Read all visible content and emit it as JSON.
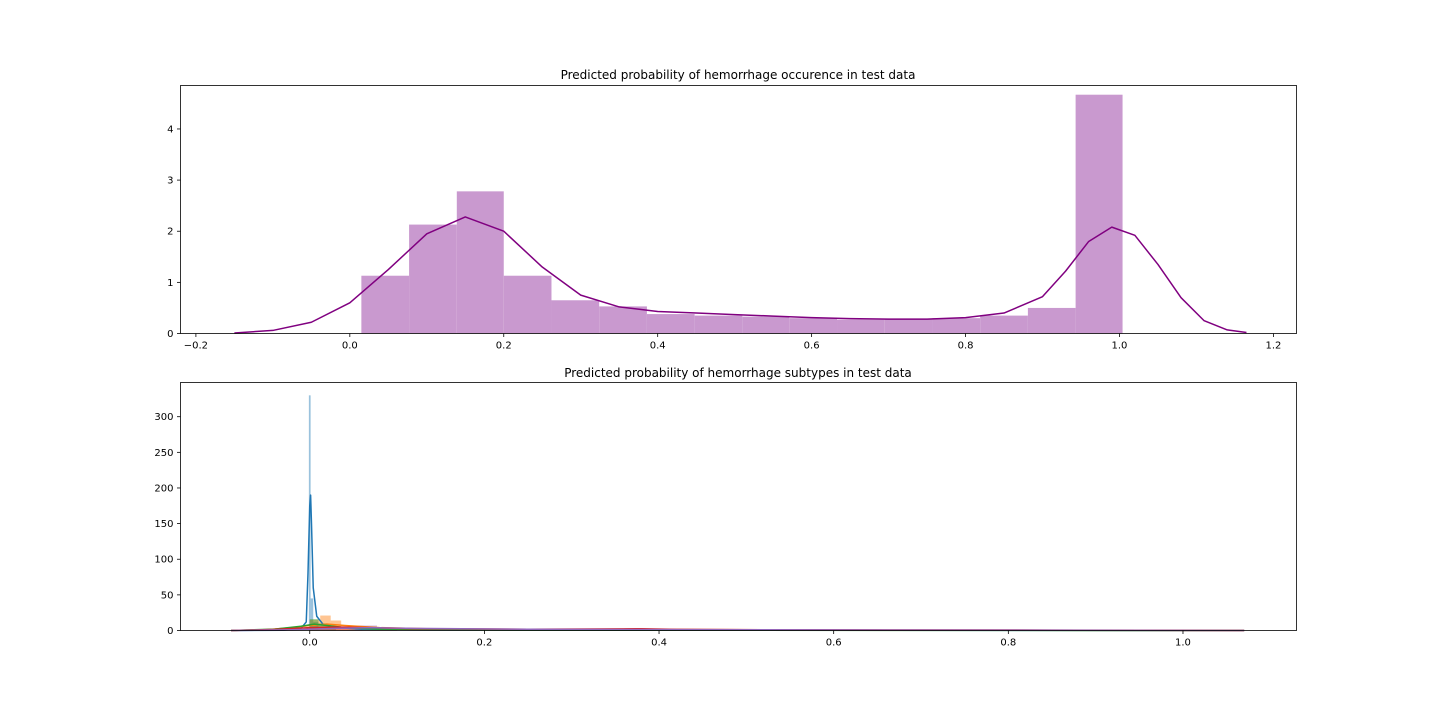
{
  "chart_data": [
    {
      "type": "histogram+kde",
      "title": "Predicted probability of hemorrhage occurence in test data",
      "xlabel": "",
      "ylabel": "",
      "xlim": [
        -0.22,
        1.23
      ],
      "ylim": [
        0,
        4.85
      ],
      "xticks": [
        "−0.2",
        "0.0",
        "0.2",
        "0.4",
        "0.6",
        "0.8",
        "1.0",
        "1.2"
      ],
      "xtick_values": [
        -0.2,
        0.0,
        0.2,
        0.4,
        0.6,
        0.8,
        1.0,
        1.2
      ],
      "yticks": [
        "0",
        "1",
        "2",
        "3",
        "4"
      ],
      "ytick_values": [
        0,
        1,
        2,
        3,
        4
      ],
      "grid": false,
      "legend": "none",
      "colors": {
        "bars": "#c999cf",
        "kde": "#800080"
      },
      "bins": [
        {
          "x0": 0.015,
          "x1": 0.077,
          "height": 1.13
        },
        {
          "x0": 0.077,
          "x1": 0.139,
          "height": 2.13
        },
        {
          "x0": 0.139,
          "x1": 0.2,
          "height": 2.78
        },
        {
          "x0": 0.2,
          "x1": 0.262,
          "height": 1.13
        },
        {
          "x0": 0.262,
          "x1": 0.324,
          "height": 0.65
        },
        {
          "x0": 0.324,
          "x1": 0.386,
          "height": 0.53
        },
        {
          "x0": 0.386,
          "x1": 0.448,
          "height": 0.38
        },
        {
          "x0": 0.448,
          "x1": 0.51,
          "height": 0.35
        },
        {
          "x0": 0.51,
          "x1": 0.571,
          "height": 0.33
        },
        {
          "x0": 0.571,
          "x1": 0.633,
          "height": 0.3
        },
        {
          "x0": 0.633,
          "x1": 0.695,
          "height": 0.27
        },
        {
          "x0": 0.695,
          "x1": 0.757,
          "height": 0.28
        },
        {
          "x0": 0.757,
          "x1": 0.819,
          "height": 0.3
        },
        {
          "x0": 0.819,
          "x1": 0.881,
          "height": 0.35
        },
        {
          "x0": 0.881,
          "x1": 0.943,
          "height": 0.5
        },
        {
          "x0": 0.943,
          "x1": 1.004,
          "height": 4.67
        }
      ],
      "kde": {
        "x": [
          -0.15,
          -0.1,
          -0.05,
          0.0,
          0.05,
          0.1,
          0.15,
          0.2,
          0.25,
          0.3,
          0.35,
          0.4,
          0.45,
          0.5,
          0.55,
          0.6,
          0.65,
          0.7,
          0.75,
          0.8,
          0.85,
          0.9,
          0.93,
          0.96,
          0.99,
          1.02,
          1.05,
          1.08,
          1.11,
          1.14,
          1.165
        ],
        "y": [
          0.01,
          0.06,
          0.22,
          0.6,
          1.25,
          1.95,
          2.28,
          2.0,
          1.3,
          0.75,
          0.52,
          0.43,
          0.4,
          0.37,
          0.34,
          0.31,
          0.29,
          0.28,
          0.28,
          0.31,
          0.4,
          0.72,
          1.22,
          1.8,
          2.08,
          1.92,
          1.35,
          0.7,
          0.25,
          0.07,
          0.02
        ]
      }
    },
    {
      "type": "histogram+kde",
      "title": "Predicted probability of hemorrhage subtypes in test data",
      "xlabel": "",
      "ylabel": "",
      "xlim": [
        -0.148,
        1.13
      ],
      "ylim": [
        0,
        348
      ],
      "xticks": [
        "0.0",
        "0.2",
        "0.4",
        "0.6",
        "0.8",
        "1.0"
      ],
      "xtick_values": [
        0.0,
        0.2,
        0.4,
        0.6,
        0.8,
        1.0
      ],
      "yticks": [
        "0",
        "50",
        "100",
        "150",
        "200",
        "250",
        "300"
      ],
      "ytick_values": [
        0,
        50,
        100,
        150,
        200,
        250,
        300
      ],
      "grid": false,
      "legend": "none",
      "series": [
        {
          "color": "#1f77b4",
          "bins": [
            {
              "x0": -0.001,
              "x1": 0.001,
              "height": 330
            },
            {
              "x0": 0.001,
              "x1": 0.004,
              "height": 45
            },
            {
              "x0": 0.004,
              "x1": 0.01,
              "height": 12
            }
          ],
          "kde": {
            "x": [
              -0.09,
              -0.03,
              -0.01,
              -0.004,
              -0.002,
              0.0,
              0.001,
              0.002,
              0.004,
              0.008,
              0.015,
              0.03,
              0.06,
              0.15,
              0.4,
              1.07
            ],
            "y": [
              0,
              0.3,
              3,
              12,
              80,
              175,
              190,
              150,
              60,
              20,
              9,
              4,
              2,
              1,
              0.5,
              0
            ]
          }
        },
        {
          "color": "#ff7f0e",
          "bins": [
            {
              "x0": 0.0,
              "x1": 0.012,
              "height": 15
            },
            {
              "x0": 0.012,
              "x1": 0.024,
              "height": 21
            },
            {
              "x0": 0.024,
              "x1": 0.036,
              "height": 14
            },
            {
              "x0": 0.036,
              "x1": 0.06,
              "height": 5
            },
            {
              "x0": 0.06,
              "x1": 0.1,
              "height": 2
            }
          ],
          "kde": {
            "x": [
              -0.09,
              -0.05,
              -0.02,
              0.0,
              0.02,
              0.04,
              0.08,
              0.15,
              0.3,
              0.37,
              0.45,
              0.7,
              1.07
            ],
            "y": [
              0,
              1,
              4,
              7,
              9,
              7,
              4,
              2,
              1.5,
              2,
              1.2,
              0.5,
              0
            ]
          }
        },
        {
          "color": "#2ca02c",
          "bins": [
            {
              "x0": 0.0,
              "x1": 0.01,
              "height": 16
            },
            {
              "x0": 0.01,
              "x1": 0.02,
              "height": 10
            },
            {
              "x0": 0.02,
              "x1": 0.03,
              "height": 6
            }
          ],
          "kde": {
            "x": [
              -0.09,
              -0.04,
              -0.01,
              0.005,
              0.02,
              0.04,
              0.08,
              0.2,
              0.5,
              1.07
            ],
            "y": [
              0,
              2,
              6,
              9,
              7,
              4,
              2,
              1,
              0.3,
              0
            ]
          }
        },
        {
          "color": "#d62728",
          "bins": [
            {
              "x0": 0.0,
              "x1": 0.03,
              "height": 5
            },
            {
              "x0": 0.03,
              "x1": 0.06,
              "height": 4
            },
            {
              "x0": 0.36,
              "x1": 0.385,
              "height": 3
            }
          ],
          "kde": {
            "x": [
              -0.09,
              -0.04,
              0.0,
              0.03,
              0.07,
              0.12,
              0.25,
              0.36,
              0.38,
              0.42,
              0.6,
              0.85,
              1.07
            ],
            "y": [
              0,
              1.5,
              4,
              5,
              4,
              2.5,
              1.8,
              2.2,
              2.5,
              1.5,
              0.8,
              0.6,
              0
            ]
          }
        },
        {
          "color": "#9467bd",
          "bins": [
            {
              "x0": 0.052,
              "x1": 0.077,
              "height": 7
            },
            {
              "x0": 0.077,
              "x1": 0.1,
              "height": 2
            }
          ],
          "kde": {
            "x": [
              -0.09,
              -0.02,
              0.03,
              0.07,
              0.12,
              0.25,
              0.5,
              0.8,
              1.07
            ],
            "y": [
              0,
              1,
              3,
              4,
              3,
              1.8,
              1,
              0.5,
              0
            ]
          }
        }
      ]
    }
  ]
}
